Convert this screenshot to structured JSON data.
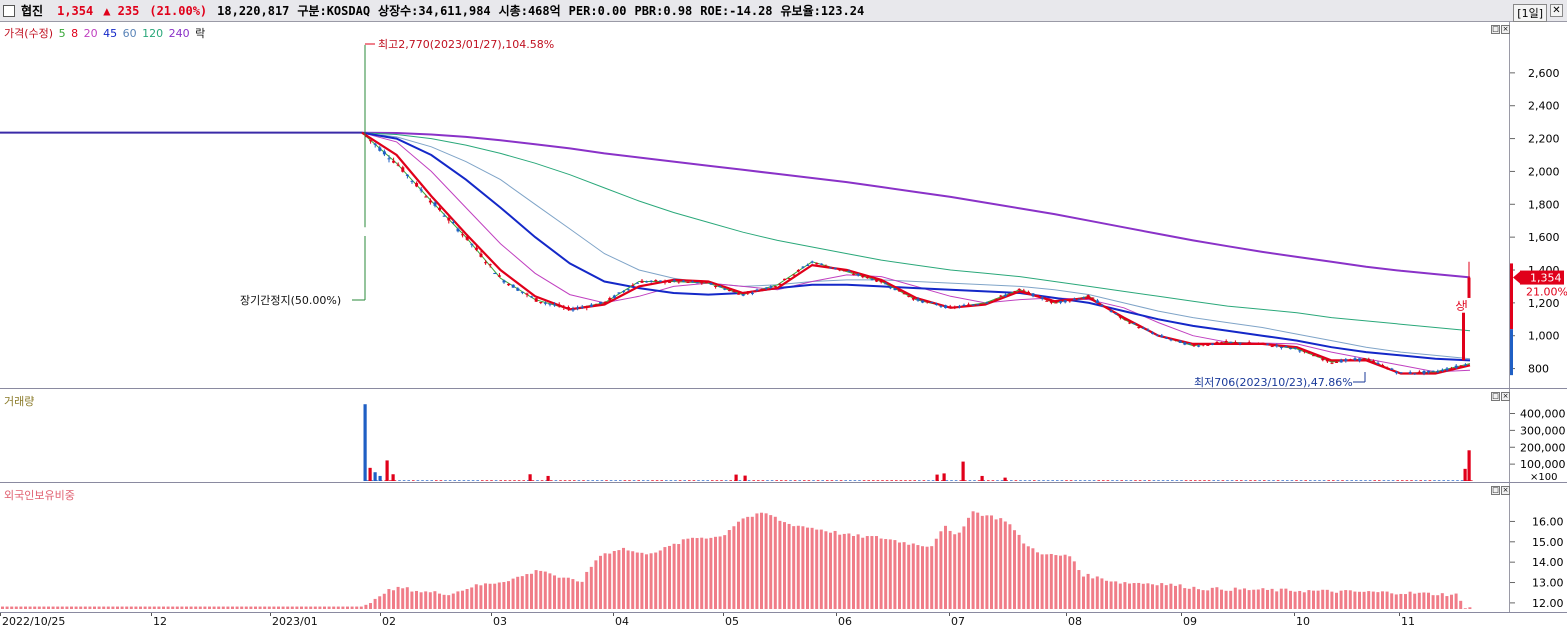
{
  "header": {
    "name": "협진",
    "price": "1,354",
    "change": "▲ 235",
    "change_pct": "(21.00%)",
    "volume": "18,220,817",
    "market": "구분:KOSDAQ",
    "shares": "상장수:34,611,984",
    "mcap": "시총:468억",
    "per": "PER:0.00",
    "pbr": "PBR:0.98",
    "roe": "ROE:-14.28",
    "reserve": "유보율:123.24",
    "period": "[1일]",
    "close_glyph": "✕"
  },
  "colors": {
    "up": "#e0001a",
    "down": "#1f5fc4",
    "ma5": "#37a837",
    "ma8": "#e0001a",
    "ma20": "#c040c0",
    "ma45": "#1428c8",
    "ma60": "#7fa4c8",
    "ma120": "#2aa87a",
    "ma240": "#8a32c8",
    "foreign": "#f07c88"
  },
  "legend": {
    "price": {
      "title": "가격(수정)",
      "items": [
        "5",
        "8",
        "20",
        "45",
        "60",
        "120",
        "240",
        "락"
      ]
    },
    "volume": {
      "title": "거래량"
    },
    "foreign": {
      "title": "외국인보유비중"
    }
  },
  "annotations": {
    "high": "최고2,770(2023/01/27),104.58%",
    "low": "최저706(2023/10/23),47.86%",
    "halt": "장기간정지(50.00%)",
    "sang": "상",
    "last_price": "1,354",
    "last_pct": "21.00%"
  },
  "chart_data": [
    {
      "type": "candlestick",
      "title": "가격(수정)",
      "ylim": [
        700,
        2800
      ],
      "yticks": [
        "2,600",
        "2,400",
        "2,200",
        "2,000",
        "1,800",
        "1,600",
        "1,400",
        "1,200",
        "1,000",
        "800"
      ],
      "ytick_values": [
        2600,
        2400,
        2200,
        2000,
        1800,
        1600,
        1400,
        1200,
        1000,
        800
      ],
      "flat_price_before_halt": 2236,
      "series": [
        {
          "name": "5",
          "values": [
            2236,
            2050,
            1820,
            1600,
            1350,
            1220,
            1160,
            1200,
            1330,
            1330,
            1320,
            1250,
            1310,
            1450,
            1390,
            1330,
            1220,
            1170,
            1200,
            1280,
            1200,
            1240,
            1100,
            1000,
            940,
            960,
            950,
            920,
            840,
            860,
            770,
            780,
            830
          ]
        },
        {
          "name": "8",
          "values": [
            2236,
            2100,
            1850,
            1620,
            1400,
            1240,
            1160,
            1190,
            1300,
            1340,
            1330,
            1260,
            1290,
            1430,
            1400,
            1340,
            1230,
            1170,
            1190,
            1270,
            1210,
            1230,
            1110,
            1000,
            950,
            950,
            950,
            930,
            850,
            850,
            770,
            770,
            820
          ]
        },
        {
          "name": "20",
          "values": [
            2236,
            2180,
            2000,
            1780,
            1560,
            1380,
            1250,
            1200,
            1240,
            1300,
            1320,
            1300,
            1280,
            1330,
            1370,
            1360,
            1300,
            1240,
            1200,
            1220,
            1230,
            1220,
            1170,
            1080,
            1000,
            960,
            955,
            950,
            900,
            860,
            820,
            780,
            790
          ]
        },
        {
          "name": "45",
          "values": [
            2236,
            2200,
            2100,
            1950,
            1780,
            1600,
            1440,
            1330,
            1290,
            1260,
            1250,
            1260,
            1290,
            1310,
            1310,
            1300,
            1290,
            1280,
            1270,
            1260,
            1230,
            1200,
            1150,
            1100,
            1060,
            1030,
            1000,
            970,
            930,
            900,
            880,
            860,
            850
          ]
        },
        {
          "name": "60",
          "values": [
            2236,
            2210,
            2150,
            2060,
            1950,
            1800,
            1650,
            1500,
            1400,
            1350,
            1320,
            1300,
            1310,
            1330,
            1340,
            1340,
            1330,
            1320,
            1310,
            1300,
            1280,
            1250,
            1200,
            1150,
            1110,
            1080,
            1050,
            1010,
            970,
            930,
            900,
            880,
            860
          ]
        },
        {
          "name": "120",
          "values": [
            2236,
            2225,
            2200,
            2160,
            2110,
            2050,
            1980,
            1900,
            1820,
            1750,
            1690,
            1630,
            1580,
            1540,
            1500,
            1460,
            1430,
            1400,
            1380,
            1360,
            1330,
            1300,
            1270,
            1240,
            1210,
            1180,
            1160,
            1140,
            1110,
            1090,
            1070,
            1050,
            1030
          ]
        },
        {
          "name": "240",
          "values": [
            2236,
            2234,
            2225,
            2210,
            2190,
            2165,
            2140,
            2110,
            2085,
            2060,
            2035,
            2010,
            1985,
            1960,
            1935,
            1905,
            1875,
            1845,
            1810,
            1775,
            1740,
            1700,
            1660,
            1620,
            1580,
            1545,
            1510,
            1480,
            1450,
            1420,
            1395,
            1375,
            1355
          ]
        }
      ]
    },
    {
      "type": "bar",
      "title": "거래량",
      "unit": "×100",
      "ylim": [
        0,
        480000
      ],
      "yticks": [
        "400,000",
        "300,000",
        "200,000",
        "100,000"
      ],
      "ytick_values": [
        400000,
        300000,
        200000,
        100000
      ],
      "spikes": [
        {
          "x": 365,
          "value": 455000,
          "dir": "down"
        },
        {
          "x": 370,
          "value": 78000,
          "dir": "up"
        },
        {
          "x": 375,
          "value": 52000,
          "dir": "down"
        },
        {
          "x": 380,
          "value": 30000,
          "dir": "down"
        },
        {
          "x": 387,
          "value": 122000,
          "dir": "up"
        },
        {
          "x": 393,
          "value": 40000,
          "dir": "up"
        },
        {
          "x": 530,
          "value": 40000,
          "dir": "up"
        },
        {
          "x": 548,
          "value": 30000,
          "dir": "up"
        },
        {
          "x": 736,
          "value": 38000,
          "dir": "up"
        },
        {
          "x": 745,
          "value": 32000,
          "dir": "up"
        },
        {
          "x": 937,
          "value": 38000,
          "dir": "up"
        },
        {
          "x": 944,
          "value": 45000,
          "dir": "up"
        },
        {
          "x": 963,
          "value": 115000,
          "dir": "up"
        },
        {
          "x": 982,
          "value": 30000,
          "dir": "up"
        },
        {
          "x": 1005,
          "value": 20000,
          "dir": "up"
        },
        {
          "x": 1465,
          "value": 72000,
          "dir": "up"
        },
        {
          "x": 1469,
          "value": 182000,
          "dir": "up"
        }
      ]
    },
    {
      "type": "bar",
      "title": "외국인보유비중",
      "ylim": [
        11.7,
        17.2
      ],
      "yticks": [
        "16.00",
        "15.00",
        "14.00",
        "13.00",
        "12.00"
      ],
      "ytick_values": [
        16,
        15,
        14,
        13,
        12
      ],
      "profile": [
        {
          "x": 0,
          "value": 11.82
        },
        {
          "x": 360,
          "value": 11.82
        },
        {
          "x": 372,
          "value": 12.05
        },
        {
          "x": 380,
          "value": 12.5
        },
        {
          "x": 400,
          "value": 12.75
        },
        {
          "x": 420,
          "value": 12.55
        },
        {
          "x": 450,
          "value": 12.45
        },
        {
          "x": 470,
          "value": 12.8
        },
        {
          "x": 500,
          "value": 13.05
        },
        {
          "x": 520,
          "value": 13.3
        },
        {
          "x": 540,
          "value": 13.65
        },
        {
          "x": 560,
          "value": 13.2
        },
        {
          "x": 580,
          "value": 13.05
        },
        {
          "x": 597,
          "value": 14.3
        },
        {
          "x": 620,
          "value": 14.7
        },
        {
          "x": 640,
          "value": 14.4
        },
        {
          "x": 660,
          "value": 14.6
        },
        {
          "x": 690,
          "value": 15.2
        },
        {
          "x": 720,
          "value": 15.25
        },
        {
          "x": 740,
          "value": 16.15
        },
        {
          "x": 765,
          "value": 16.4
        },
        {
          "x": 785,
          "value": 15.9
        },
        {
          "x": 820,
          "value": 15.6
        },
        {
          "x": 850,
          "value": 15.3
        },
        {
          "x": 880,
          "value": 15.2
        },
        {
          "x": 910,
          "value": 14.9
        },
        {
          "x": 930,
          "value": 14.8
        },
        {
          "x": 942,
          "value": 15.8
        },
        {
          "x": 955,
          "value": 15.2
        },
        {
          "x": 970,
          "value": 16.5
        },
        {
          "x": 985,
          "value": 16.3
        },
        {
          "x": 1005,
          "value": 16.05
        },
        {
          "x": 1025,
          "value": 14.8
        },
        {
          "x": 1045,
          "value": 14.35
        },
        {
          "x": 1070,
          "value": 14.3
        },
        {
          "x": 1080,
          "value": 13.4
        },
        {
          "x": 1120,
          "value": 13.0
        },
        {
          "x": 1160,
          "value": 12.95
        },
        {
          "x": 1200,
          "value": 12.7
        },
        {
          "x": 1300,
          "value": 12.6
        },
        {
          "x": 1400,
          "value": 12.5
        },
        {
          "x": 1455,
          "value": 12.4
        },
        {
          "x": 1462,
          "value": 11.82
        },
        {
          "x": 1470,
          "value": 11.82
        }
      ]
    }
  ],
  "x_axis": {
    "labels": [
      {
        "text": "2022/10/25",
        "x": 2
      },
      {
        "text": "12",
        "x": 153
      },
      {
        "text": "2023/01",
        "x": 272
      },
      {
        "text": "02",
        "x": 382
      },
      {
        "text": "03",
        "x": 493
      },
      {
        "text": "04",
        "x": 615
      },
      {
        "text": "05",
        "x": 725
      },
      {
        "text": "06",
        "x": 838
      },
      {
        "text": "07",
        "x": 951
      },
      {
        "text": "08",
        "x": 1068
      },
      {
        "text": "09",
        "x": 1183
      },
      {
        "text": "10",
        "x": 1296
      },
      {
        "text": "11",
        "x": 1401
      }
    ]
  }
}
